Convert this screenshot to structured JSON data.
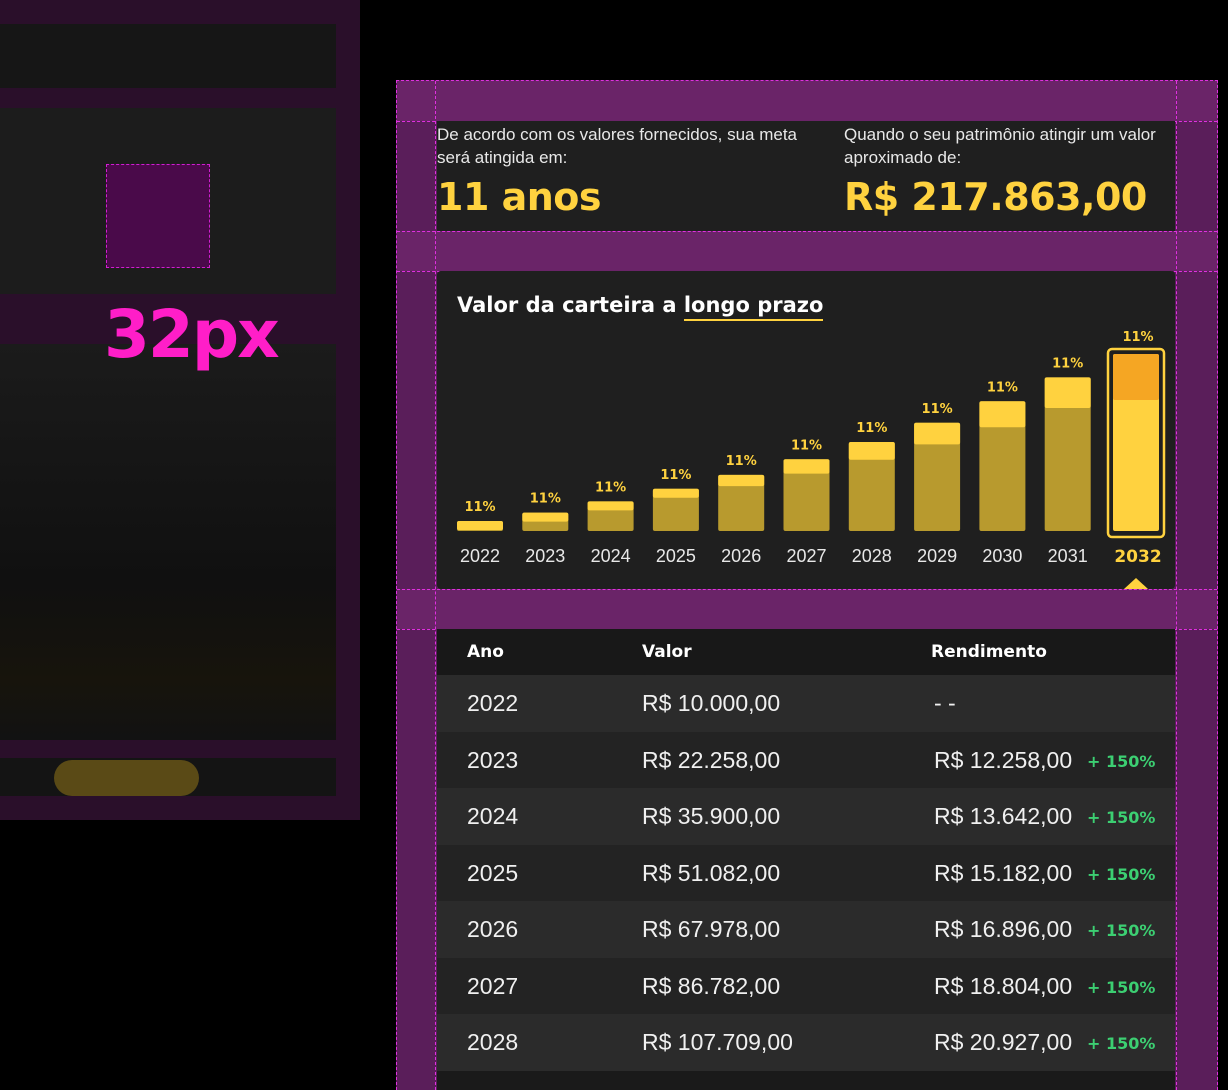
{
  "annotation": {
    "spacing_label": "32px"
  },
  "summary": {
    "goal_description": "De acordo com os valores fornecidos, sua meta será atingida em:",
    "goal_value": "11 anos",
    "wealth_description": "Quando o seu patrimônio atingir um valor aproximado de:",
    "wealth_value": "R$ 217.863,00"
  },
  "chart_data": {
    "type": "bar",
    "title_prefix": "Valor da carteira a",
    "title_highlight": "longo prazo",
    "categories": [
      "2022",
      "2023",
      "2024",
      "2025",
      "2026",
      "2027",
      "2028",
      "2029",
      "2030",
      "2031",
      "2032"
    ],
    "values": [
      10000,
      22258,
      35900,
      51082,
      67978,
      86782,
      107709,
      131000,
      157000,
      186000,
      217863
    ],
    "labels": [
      "11%",
      "11%",
      "11%",
      "11%",
      "11%",
      "11%",
      "11%",
      "11%",
      "11%",
      "11%",
      "11%"
    ],
    "highlighted": "2032",
    "colors": {
      "bar": "#b89a2e",
      "bar_top": "#ffd23f",
      "highlight": "#ffd23f",
      "highlight_top": "#f5a623"
    }
  },
  "table": {
    "headers": {
      "year": "Ano",
      "value": "Valor",
      "yield": "Rendimento"
    },
    "rows": [
      {
        "year": "2022",
        "value": "R$ 10.000,00",
        "yield": "- -",
        "badge": ""
      },
      {
        "year": "2023",
        "value": "R$ 22.258,00",
        "yield": "R$ 12.258,00",
        "badge": "+ 150%"
      },
      {
        "year": "2024",
        "value": "R$ 35.900,00",
        "yield": "R$ 13.642,00",
        "badge": "+ 150%"
      },
      {
        "year": "2025",
        "value": "R$ 51.082,00",
        "yield": "R$ 15.182,00",
        "badge": "+ 150%"
      },
      {
        "year": "2026",
        "value": "R$ 67.978,00",
        "yield": "R$ 16.896,00",
        "badge": "+ 150%"
      },
      {
        "year": "2027",
        "value": "R$ 86.782,00",
        "yield": "R$ 18.804,00",
        "badge": "+ 150%"
      },
      {
        "year": "2028",
        "value": "R$ 107.709,00",
        "yield": "R$ 20.927,00",
        "badge": "+ 150%"
      }
    ]
  }
}
